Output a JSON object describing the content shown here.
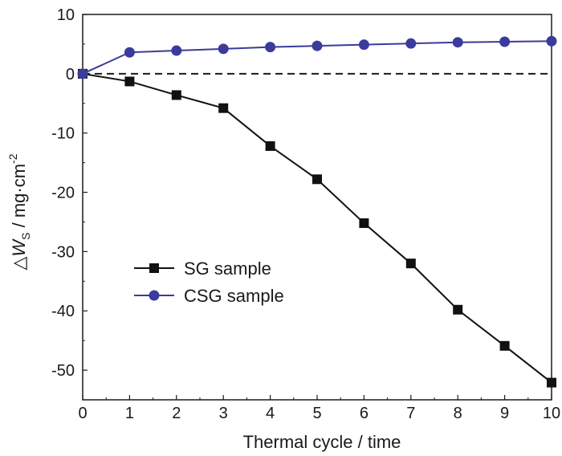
{
  "chart_data": {
    "type": "line",
    "title": "",
    "xlabel": "Thermal cycle / time",
    "ylabel": {
      "prefix": "△",
      "var": "W",
      "sub": "S",
      "unit": " / mg·cm",
      "sup": "-2"
    },
    "x": [
      0,
      1,
      2,
      3,
      4,
      5,
      6,
      7,
      8,
      9,
      10
    ],
    "xlim": [
      0,
      10
    ],
    "ylim": [
      -55,
      10
    ],
    "xticks": [
      "0",
      "1",
      "2",
      "3",
      "4",
      "5",
      "6",
      "7",
      "8",
      "9",
      "10"
    ],
    "yticks": [
      10,
      0,
      -10,
      -20,
      -30,
      -40,
      -50
    ],
    "ytick_labels": [
      "10",
      "0",
      "-10",
      "-20",
      "-30",
      "-40",
      "-50"
    ],
    "reference_line": {
      "y": 0,
      "style": "dashed"
    },
    "grid": false,
    "legend_position": "lower-left",
    "series": [
      {
        "name": "SG sample",
        "marker": "square",
        "color": "#111111",
        "values": [
          0,
          -1.3,
          -3.6,
          -5.8,
          -12.2,
          -17.8,
          -25.2,
          -32.0,
          -39.8,
          -45.9,
          -52.1
        ]
      },
      {
        "name": "CSG sample",
        "marker": "circle",
        "color": "#3b3b9c",
        "values": [
          0,
          3.6,
          3.9,
          4.2,
          4.5,
          4.7,
          4.9,
          5.1,
          5.3,
          5.4,
          5.5
        ]
      }
    ]
  }
}
